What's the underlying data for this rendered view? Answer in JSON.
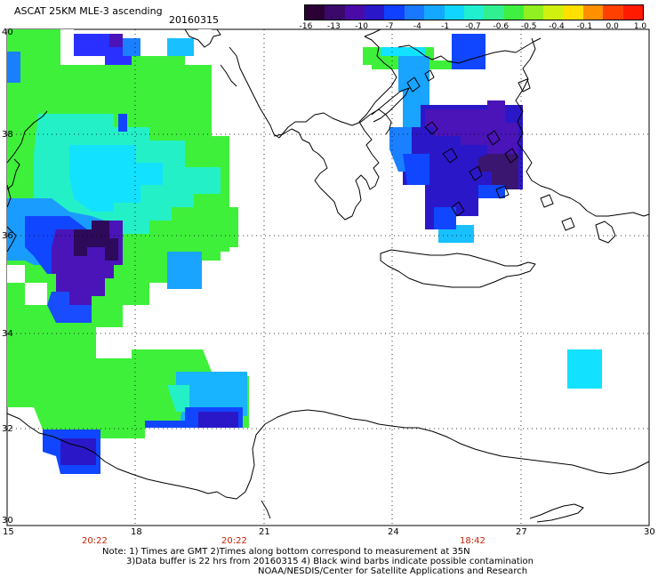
{
  "header": {
    "title": "ASCAT 25KM MLE-3 ascending",
    "date": "20160315"
  },
  "colorbar": {
    "labels": [
      "-16",
      "-13",
      "-10",
      "-7",
      "-4",
      "-1",
      "-0.7",
      "-0.6",
      "-0.5",
      "-0.4",
      "-0.1",
      "0.0",
      "1.0"
    ],
    "colors": [
      "#2b0035",
      "#3a0a6a",
      "#4a0aa8",
      "#2a18c8",
      "#1040ff",
      "#1a78ff",
      "#14a8ff",
      "#10d6ff",
      "#20f0d0",
      "#30f090",
      "#40f040",
      "#90f020",
      "#d0f010",
      "#ffe000",
      "#ff9000",
      "#ff4000",
      "#ff1a00"
    ]
  },
  "axes": {
    "lon_labels": [
      "15",
      "18",
      "21",
      "24",
      "27",
      "30"
    ],
    "lat_labels": [
      "40",
      "38",
      "36",
      "34",
      "32",
      "30"
    ]
  },
  "pass_times": [
    "20:22",
    "20:22",
    "18:42"
  ],
  "notes": {
    "line1": "Note: 1) Times are GMT 2)Times along bottom correspond to measurement at 35N",
    "line2": "3)Data buffer is 22 hrs from 20160315 4) Black wind barbs indicate possible contamination",
    "line3": "NOAA/NESDIS/Center for Satellite Applications and Research"
  }
}
